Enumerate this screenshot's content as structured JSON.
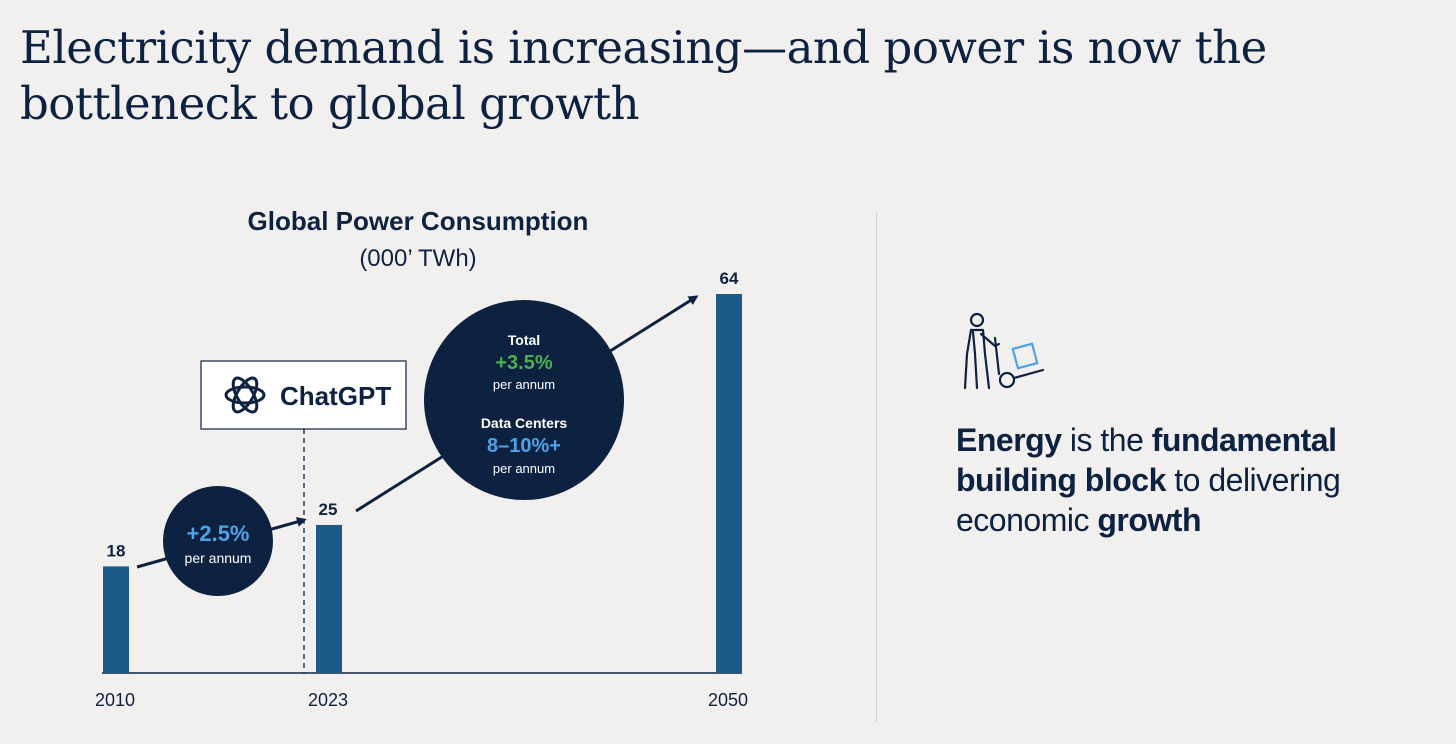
{
  "headline": {
    "line1": "Electricity demand is increasing—and power is now the",
    "line2": "bottleneck to global growth"
  },
  "chart_data": {
    "type": "bar",
    "title": "Global Power Consumption",
    "subtitle": "(000’ TWh)",
    "categories": [
      "2010",
      "2023",
      "2050"
    ],
    "values": [
      18,
      25,
      64
    ],
    "value_labels": [
      "18",
      "25",
      "64"
    ],
    "xlabel": "",
    "ylabel": "",
    "ylim": [
      0,
      64
    ],
    "grid": false,
    "event_marker": {
      "label": "ChatGPT",
      "position": "2023"
    },
    "annotations": [
      {
        "from": "2010",
        "to": "2023",
        "value": "+2.5%",
        "note": "per annum"
      },
      {
        "from": "2023",
        "to": "2050",
        "total_label": "Total",
        "total_value": "+3.5%",
        "total_note": "per annum",
        "dc_label": "Data Centers",
        "dc_value": "8–10%+",
        "dc_note": "per annum"
      }
    ],
    "colors": {
      "bar": "#1c5a8a",
      "navy": "#0d2240",
      "blue_accent": "#4da3e6",
      "green_accent": "#4caf50"
    }
  },
  "sidebar": {
    "icon": "hand-truck-icon",
    "energy": "Energy",
    "is_the": " is the ",
    "fundamental": "fundamental",
    "building_block": "building block",
    "to_delivering": " to delivering",
    "economic": "economic ",
    "growth": "growth"
  }
}
